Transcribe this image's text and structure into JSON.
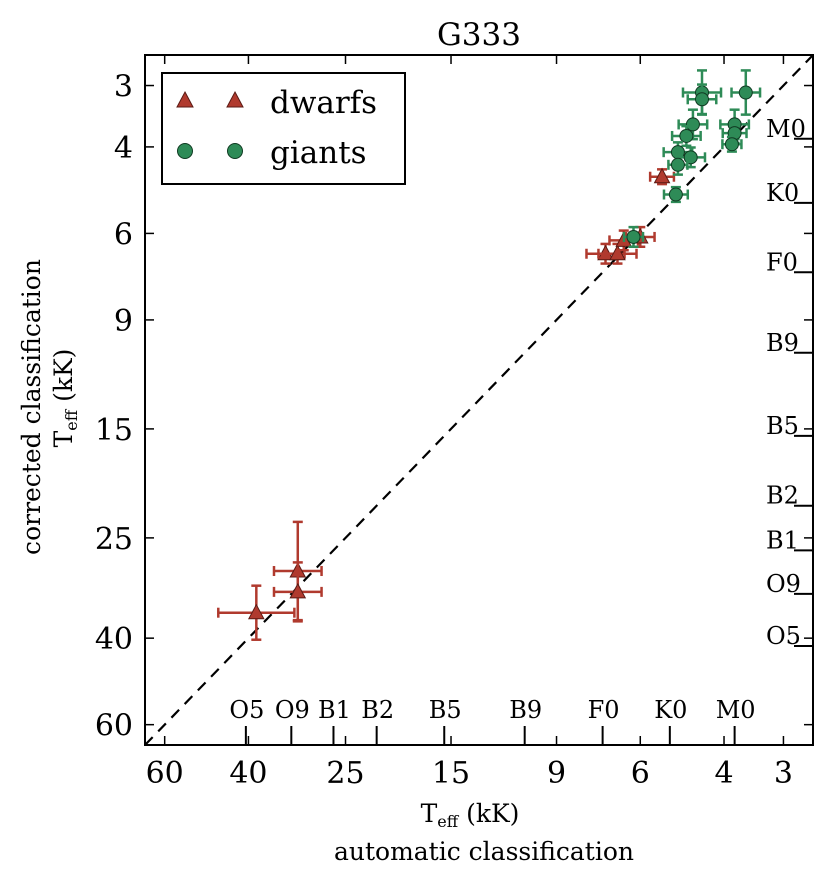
{
  "chart_data": {
    "type": "scatter",
    "title": "G333",
    "xlabel_line1": "T",
    "xlabel_sub": "eff",
    "xlabel_unit": " (kK)",
    "xlabel_line2": "automatic classification",
    "ylabel_line1": "corrected classification",
    "ylabel_line2": "T",
    "ylabel_sub": "eff",
    "ylabel_unit": " (kK)",
    "scale": "log-inverted",
    "xlim": [
      66,
      2.6
    ],
    "ylim": [
      2.6,
      66
    ],
    "x_ticks": [
      {
        "value": 60,
        "label": "60"
      },
      {
        "value": 40,
        "label": "40"
      },
      {
        "value": 25,
        "label": "25"
      },
      {
        "value": 15,
        "label": "15"
      },
      {
        "value": 9,
        "label": "9"
      },
      {
        "value": 6,
        "label": "6"
      },
      {
        "value": 4,
        "label": "4"
      },
      {
        "value": 3,
        "label": "3"
      }
    ],
    "y_ticks": [
      {
        "value": 3,
        "label": "3"
      },
      {
        "value": 4,
        "label": "4"
      },
      {
        "value": 6,
        "label": "6"
      },
      {
        "value": 9,
        "label": "9"
      },
      {
        "value": 15,
        "label": "15"
      },
      {
        "value": 25,
        "label": "25"
      },
      {
        "value": 40,
        "label": "40"
      },
      {
        "value": 60,
        "label": "60"
      }
    ],
    "spectral_types_x": [
      {
        "label": "O5",
        "teff": 40.5
      },
      {
        "label": "O9",
        "teff": 32.5
      },
      {
        "label": "B1",
        "teff": 26.5
      },
      {
        "label": "B2",
        "teff": 21.5
      },
      {
        "label": "B5",
        "teff": 15.5
      },
      {
        "label": "B9",
        "teff": 10.5
      },
      {
        "label": "F0",
        "teff": 7.2
      },
      {
        "label": "K0",
        "teff": 5.2
      },
      {
        "label": "M0",
        "teff": 3.8
      }
    ],
    "spectral_types_y": [
      {
        "label": "M0",
        "teff": 3.85
      },
      {
        "label": "K0",
        "teff": 5.2
      },
      {
        "label": "F0",
        "teff": 7.2
      },
      {
        "label": "B9",
        "teff": 10.5
      },
      {
        "label": "B5",
        "teff": 15.5
      },
      {
        "label": "B2",
        "teff": 21.5
      },
      {
        "label": "B1",
        "teff": 26.5
      },
      {
        "label": "O9",
        "teff": 32.5
      },
      {
        "label": "O5",
        "teff": 41.5
      }
    ],
    "one_to_one_line": true,
    "legend": {
      "position": "upper-left",
      "entries": [
        {
          "label": "dwarfs",
          "marker": "triangle",
          "color": "#b03a2e"
        },
        {
          "label": "giants",
          "marker": "circle",
          "color": "#2e8b57"
        }
      ]
    },
    "series": [
      {
        "name": "dwarfs",
        "marker": "triangle",
        "color": "#b03a2e",
        "points": [
          {
            "x": 38.5,
            "y": 35.5,
            "xerr": 0.08,
            "yerr": 0.055
          },
          {
            "x": 31.5,
            "y": 29.2,
            "xerr": 0.05,
            "yerr": 0.1
          },
          {
            "x": 31.5,
            "y": 32.2,
            "xerr": 0.05,
            "yerr": 0.06
          },
          {
            "x": 7.1,
            "y": 6.6,
            "xerr": 0.04,
            "yerr": 0.02
          },
          {
            "x": 6.7,
            "y": 6.6,
            "xerr": 0.04,
            "yerr": 0.02
          },
          {
            "x": 6.5,
            "y": 6.2,
            "xerr": 0.03,
            "yerr": 0.02
          },
          {
            "x": 6.0,
            "y": 6.1,
            "xerr": 0.03,
            "yerr": 0.02
          },
          {
            "x": 5.4,
            "y": 4.6,
            "xerr": 0.025,
            "yerr": 0.015
          }
        ]
      },
      {
        "name": "giants",
        "marker": "circle",
        "color": "#2e8b57",
        "points": [
          {
            "x": 4.45,
            "y": 3.1,
            "xerr": 0.04,
            "yerr": 0.045
          },
          {
            "x": 3.6,
            "y": 3.1,
            "xerr": 0.03,
            "yerr": 0.045
          },
          {
            "x": 4.45,
            "y": 3.2,
            "xerr": 0.03,
            "yerr": 0.03
          },
          {
            "x": 4.65,
            "y": 3.6,
            "xerr": 0.03,
            "yerr": 0.03
          },
          {
            "x": 3.8,
            "y": 3.6,
            "xerr": 0.03,
            "yerr": 0.03
          },
          {
            "x": 4.8,
            "y": 3.8,
            "xerr": 0.03,
            "yerr": 0.02
          },
          {
            "x": 3.8,
            "y": 3.75,
            "xerr": 0.025,
            "yerr": 0.02
          },
          {
            "x": 5.0,
            "y": 4.1,
            "xerr": 0.03,
            "yerr": 0.02
          },
          {
            "x": 4.7,
            "y": 4.2,
            "xerr": 0.03,
            "yerr": 0.02
          },
          {
            "x": 3.85,
            "y": 3.95,
            "xerr": 0.02,
            "yerr": 0.015
          },
          {
            "x": 5.0,
            "y": 4.35,
            "xerr": 0.02,
            "yerr": 0.02
          },
          {
            "x": 5.05,
            "y": 5.0,
            "xerr": 0.025,
            "yerr": 0.015
          },
          {
            "x": 6.2,
            "y": 6.1,
            "xerr": 0.02,
            "yerr": 0.02
          }
        ]
      }
    ]
  }
}
